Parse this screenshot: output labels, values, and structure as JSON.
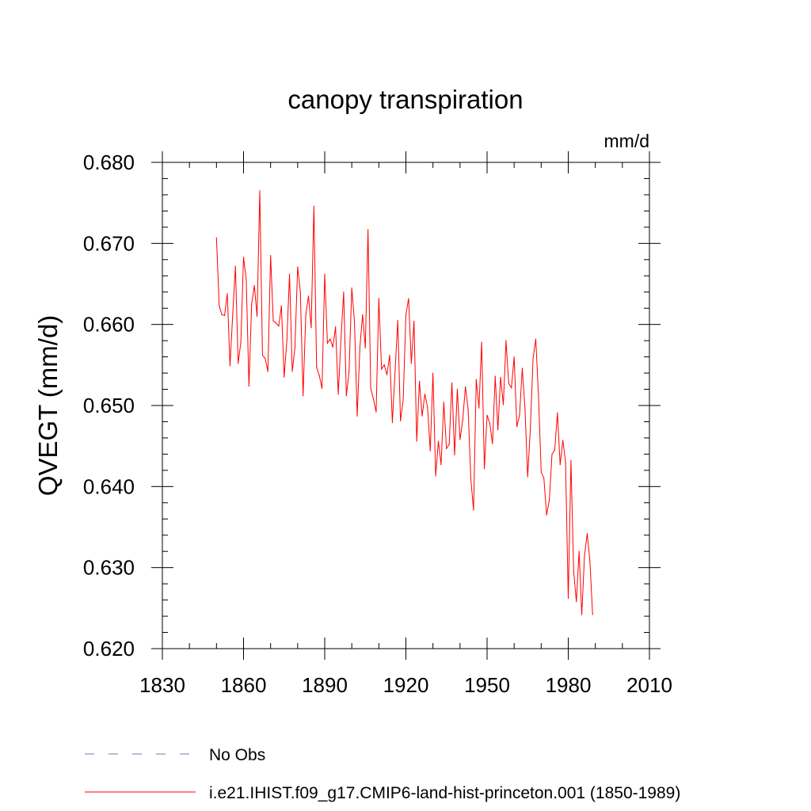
{
  "chart_data": {
    "type": "line",
    "title": "canopy transpiration",
    "units": "mm/d",
    "ylabel": "QVEGT  (mm/d)",
    "xlabel": "",
    "xlim": [
      1830,
      2010
    ],
    "ylim": [
      0.62,
      0.68
    ],
    "x_ticks": [
      "1830",
      "1860",
      "1890",
      "1920",
      "1950",
      "1980",
      "2010"
    ],
    "y_ticks": [
      "0.620",
      "0.630",
      "0.640",
      "0.650",
      "0.660",
      "0.670",
      "0.680"
    ],
    "grid": false,
    "legend_position": "bottom",
    "series": [
      {
        "name": "No Obs",
        "color": "#7b6fb3",
        "dash": "dashed",
        "x": [],
        "values": []
      },
      {
        "name": "i.e21.IHIST.f09_g17.CMIP6-land-hist-princeton.001 (1850-1989)",
        "color": "#ff0000",
        "dash": "solid",
        "x": [
          1850,
          1851,
          1852,
          1853,
          1854,
          1855,
          1856,
          1857,
          1858,
          1859,
          1860,
          1861,
          1862,
          1863,
          1864,
          1865,
          1866,
          1867,
          1868,
          1869,
          1870,
          1871,
          1872,
          1873,
          1874,
          1875,
          1876,
          1877,
          1878,
          1879,
          1880,
          1881,
          1882,
          1883,
          1884,
          1885,
          1886,
          1887,
          1888,
          1889,
          1890,
          1891,
          1892,
          1893,
          1894,
          1895,
          1896,
          1897,
          1898,
          1899,
          1900,
          1901,
          1902,
          1903,
          1904,
          1905,
          1906,
          1907,
          1908,
          1909,
          1910,
          1911,
          1912,
          1913,
          1914,
          1915,
          1916,
          1917,
          1918,
          1919,
          1920,
          1921,
          1922,
          1923,
          1924,
          1925,
          1926,
          1927,
          1928,
          1929,
          1930,
          1931,
          1932,
          1933,
          1934,
          1935,
          1936,
          1937,
          1938,
          1939,
          1940,
          1941,
          1942,
          1943,
          1944,
          1945,
          1946,
          1947,
          1948,
          1949,
          1950,
          1951,
          1952,
          1953,
          1954,
          1955,
          1956,
          1957,
          1958,
          1959,
          1960,
          1961,
          1962,
          1963,
          1964,
          1965,
          1966,
          1967,
          1968,
          1969,
          1970,
          1971,
          1972,
          1973,
          1974,
          1975,
          1976,
          1977,
          1978,
          1979,
          1980,
          1981,
          1982,
          1983,
          1984,
          1985,
          1986,
          1987,
          1988,
          1989
        ],
        "values": [
          0.6707,
          0.6623,
          0.6612,
          0.6611,
          0.6638,
          0.6549,
          0.6612,
          0.6672,
          0.6552,
          0.6578,
          0.6683,
          0.6655,
          0.6524,
          0.6625,
          0.6648,
          0.661,
          0.6765,
          0.6562,
          0.6558,
          0.6542,
          0.6685,
          0.6604,
          0.6602,
          0.6598,
          0.6623,
          0.6535,
          0.658,
          0.6662,
          0.6542,
          0.6572,
          0.6671,
          0.664,
          0.6512,
          0.6612,
          0.6635,
          0.6596,
          0.6746,
          0.6547,
          0.6537,
          0.6521,
          0.6662,
          0.6577,
          0.6582,
          0.6572,
          0.6597,
          0.6514,
          0.6582,
          0.664,
          0.6512,
          0.6542,
          0.6645,
          0.6603,
          0.6487,
          0.6572,
          0.6612,
          0.6571,
          0.6717,
          0.6521,
          0.6508,
          0.6492,
          0.6632,
          0.6545,
          0.655,
          0.6538,
          0.6562,
          0.6479,
          0.6542,
          0.6605,
          0.6481,
          0.6507,
          0.6612,
          0.6632,
          0.6552,
          0.6604,
          0.6456,
          0.653,
          0.6487,
          0.6514,
          0.6498,
          0.6444,
          0.654,
          0.6413,
          0.6456,
          0.6427,
          0.6504,
          0.6447,
          0.6452,
          0.6528,
          0.6439,
          0.652,
          0.6458,
          0.6482,
          0.6523,
          0.6495,
          0.6409,
          0.6371,
          0.6532,
          0.6497,
          0.6578,
          0.6422,
          0.6488,
          0.6478,
          0.6453,
          0.6536,
          0.647,
          0.6535,
          0.6501,
          0.658,
          0.6527,
          0.6522,
          0.656,
          0.6474,
          0.6488,
          0.6546,
          0.6497,
          0.6412,
          0.6472,
          0.6558,
          0.6582,
          0.6512,
          0.6418,
          0.641,
          0.6365,
          0.6383,
          0.644,
          0.6445,
          0.6491,
          0.6427,
          0.6457,
          0.643,
          0.6262,
          0.6432,
          0.6295,
          0.6258,
          0.632,
          0.6242,
          0.6315,
          0.6342,
          0.6308,
          0.6242
        ]
      }
    ]
  }
}
